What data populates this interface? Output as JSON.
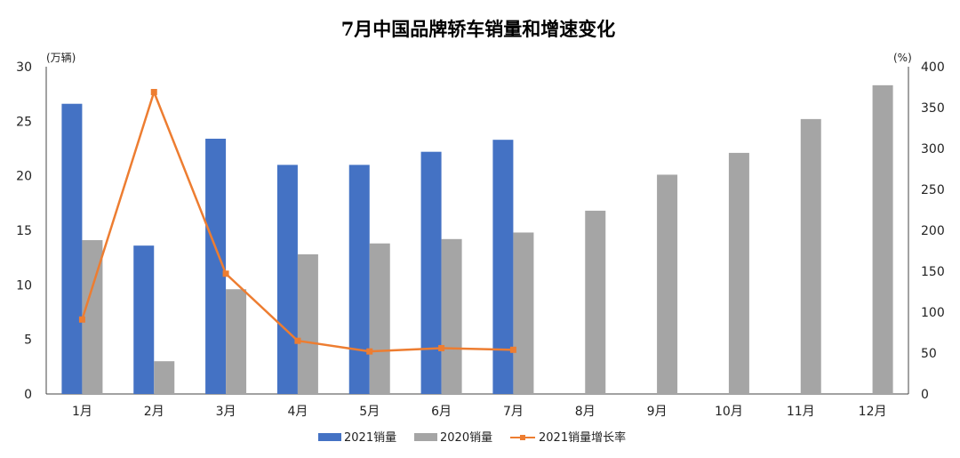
{
  "chart_data": {
    "type": "bar",
    "title": "7月中国品牌轿车销量和增速变化",
    "y_left_unit": "(万辆)",
    "y_right_unit": "(%)",
    "categories": [
      "1月",
      "2月",
      "3月",
      "4月",
      "5月",
      "6月",
      "7月",
      "8月",
      "9月",
      "10月",
      "11月",
      "12月"
    ],
    "series": [
      {
        "name": "2021销量",
        "kind": "bar",
        "axis": "left",
        "color": "#4472c4",
        "values": [
          26.6,
          13.6,
          23.4,
          21.0,
          21.0,
          22.2,
          23.3,
          null,
          null,
          null,
          null,
          null
        ]
      },
      {
        "name": "2020销量",
        "kind": "bar",
        "axis": "left",
        "color": "#a5a5a5",
        "values": [
          14.1,
          3.0,
          9.6,
          12.8,
          13.8,
          14.2,
          14.8,
          16.8,
          20.1,
          22.1,
          25.2,
          28.3
        ]
      },
      {
        "name": "2021销量增长率",
        "kind": "line",
        "axis": "right",
        "color": "#ed7d31",
        "values": [
          91,
          369,
          147,
          65,
          52,
          56,
          54,
          null,
          null,
          null,
          null,
          null
        ]
      }
    ],
    "y_left": {
      "min": 0,
      "max": 30,
      "ticks": [
        "0",
        "5",
        "10",
        "15",
        "20",
        "25",
        "30"
      ]
    },
    "y_right": {
      "min": 0,
      "max": 400,
      "ticks": [
        "0",
        "50",
        "100",
        "150",
        "200",
        "250",
        "300",
        "350",
        "400"
      ]
    },
    "grid": false,
    "legend_position": "bottom"
  }
}
